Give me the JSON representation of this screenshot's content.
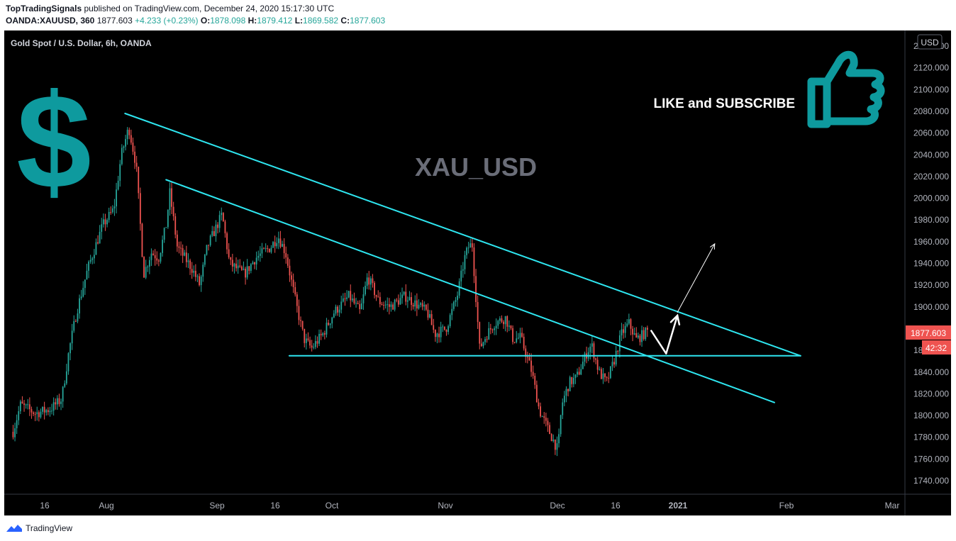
{
  "header": {
    "author": "TopTradingSignals",
    "published_text": "published on TradingView.com, December 24, 2020 15:17:30 UTC",
    "symbol": "OANDA:XAUUSD, 360",
    "last": "1877.603",
    "change": "+4.233 (+0.23%)",
    "ohlc": [
      {
        "k": "O:",
        "v": "1878.098"
      },
      {
        "k": "H:",
        "v": "1879.412"
      },
      {
        "k": "L:",
        "v": "1869.582"
      },
      {
        "k": "C:",
        "v": "1877.603"
      }
    ]
  },
  "chart_title": "Gold Spot / U.S. Dollar, 6h, OANDA",
  "watermark": "XAU_USD",
  "promo": {
    "text": "LIKE and SUBSCRIBE",
    "dollar": "$"
  },
  "axis": {
    "currency": "USD",
    "last_price_label": "1877.603",
    "countdown": "42:32",
    "partial_top_label": "2140.000"
  },
  "footer": {
    "brand": "TradingView"
  },
  "colors": {
    "background": "#000000",
    "up": "#26a69a",
    "down": "#ef5350",
    "trendline": "#2ee6f0",
    "accent_teal": "#0e9a9e",
    "price_label_bg": "#ef5350"
  },
  "chart_data": {
    "type": "candlestick",
    "title": "Gold Spot / U.S. Dollar, 6h, OANDA",
    "y_axis": {
      "ticks": [
        1740,
        1760,
        1780,
        1800,
        1820,
        1840,
        1860,
        1880,
        1900,
        1920,
        1940,
        1960,
        1980,
        2000,
        2020,
        2040,
        2060,
        2080,
        2100,
        2120,
        2140
      ],
      "range": [
        1730,
        2150
      ],
      "unit": "USD"
    },
    "x_axis": {
      "ticks": [
        "16",
        "Aug",
        "Sep",
        "16",
        "Oct",
        "Nov",
        "Dec",
        "16",
        "2021",
        "Feb",
        "Mar"
      ]
    },
    "price_path": [
      [
        "2020-07-07",
        1785
      ],
      [
        "2020-07-09",
        1810
      ],
      [
        "2020-07-13",
        1802
      ],
      [
        "2020-07-17",
        1806
      ],
      [
        "2020-07-20",
        1815
      ],
      [
        "2020-07-22",
        1860
      ],
      [
        "2020-07-24",
        1895
      ],
      [
        "2020-07-27",
        1935
      ],
      [
        "2020-07-29",
        1955
      ],
      [
        "2020-07-31",
        1975
      ],
      [
        "2020-08-03",
        1990
      ],
      [
        "2020-08-05",
        2040
      ],
      [
        "2020-08-07",
        2065
      ],
      [
        "2020-08-09",
        2030
      ],
      [
        "2020-08-11",
        1930
      ],
      [
        "2020-08-13",
        1950
      ],
      [
        "2020-08-15",
        1945
      ],
      [
        "2020-08-17",
        1975
      ],
      [
        "2020-08-18",
        2005
      ],
      [
        "2020-08-20",
        1955
      ],
      [
        "2020-08-24",
        1935
      ],
      [
        "2020-08-26",
        1920
      ],
      [
        "2020-08-28",
        1955
      ],
      [
        "2020-09-01",
        1985
      ],
      [
        "2020-09-03",
        1940
      ],
      [
        "2020-09-07",
        1930
      ],
      [
        "2020-09-10",
        1945
      ],
      [
        "2020-09-14",
        1955
      ],
      [
        "2020-09-16",
        1965
      ],
      [
        "2020-09-18",
        1950
      ],
      [
        "2020-09-21",
        1900
      ],
      [
        "2020-09-23",
        1870
      ],
      [
        "2020-09-25",
        1862
      ],
      [
        "2020-09-28",
        1875
      ],
      [
        "2020-10-01",
        1895
      ],
      [
        "2020-10-05",
        1910
      ],
      [
        "2020-10-08",
        1895
      ],
      [
        "2020-10-10",
        1928
      ],
      [
        "2020-10-13",
        1905
      ],
      [
        "2020-10-16",
        1900
      ],
      [
        "2020-10-20",
        1910
      ],
      [
        "2020-10-22",
        1905
      ],
      [
        "2020-10-26",
        1895
      ],
      [
        "2020-10-28",
        1875
      ],
      [
        "2020-10-31",
        1880
      ],
      [
        "2020-11-03",
        1910
      ],
      [
        "2020-11-05",
        1945
      ],
      [
        "2020-11-06",
        1955
      ],
      [
        "2020-11-07",
        1958
      ],
      [
        "2020-11-09",
        1862
      ],
      [
        "2020-11-11",
        1875
      ],
      [
        "2020-11-13",
        1885
      ],
      [
        "2020-11-16",
        1890
      ],
      [
        "2020-11-18",
        1870
      ],
      [
        "2020-11-20",
        1872
      ],
      [
        "2020-11-23",
        1840
      ],
      [
        "2020-11-25",
        1805
      ],
      [
        "2020-11-27",
        1790
      ],
      [
        "2020-11-30",
        1768
      ],
      [
        "2020-12-01",
        1810
      ],
      [
        "2020-12-03",
        1830
      ],
      [
        "2020-12-05",
        1835
      ],
      [
        "2020-12-08",
        1860
      ],
      [
        "2020-12-09",
        1865
      ],
      [
        "2020-12-11",
        1840
      ],
      [
        "2020-12-13",
        1830
      ],
      [
        "2020-12-15",
        1850
      ],
      [
        "2020-12-17",
        1875
      ],
      [
        "2020-12-19",
        1885
      ],
      [
        "2020-12-21",
        1870
      ],
      [
        "2020-12-23",
        1875
      ],
      [
        "2020-12-24",
        1877.603
      ]
    ],
    "annotations": {
      "upper_trendline": [
        [
          "2020-08-06",
          2078
        ],
        [
          "2021-02-03",
          1855
        ]
      ],
      "lower_trendline": [
        [
          "2020-08-17",
          2017
        ],
        [
          "2021-01-27",
          1812
        ]
      ],
      "support_line": [
        [
          "2020-09-19",
          1855
        ],
        [
          "2021-02-03",
          1855
        ]
      ],
      "projection_path": [
        [
          "2020-12-25",
          1878
        ],
        [
          "2020-12-29",
          1857
        ],
        [
          "2021-01-01",
          1892
        ]
      ],
      "target_arrow": [
        [
          "2021-01-01",
          1895
        ],
        [
          "2021-01-11",
          1958
        ]
      ]
    }
  }
}
